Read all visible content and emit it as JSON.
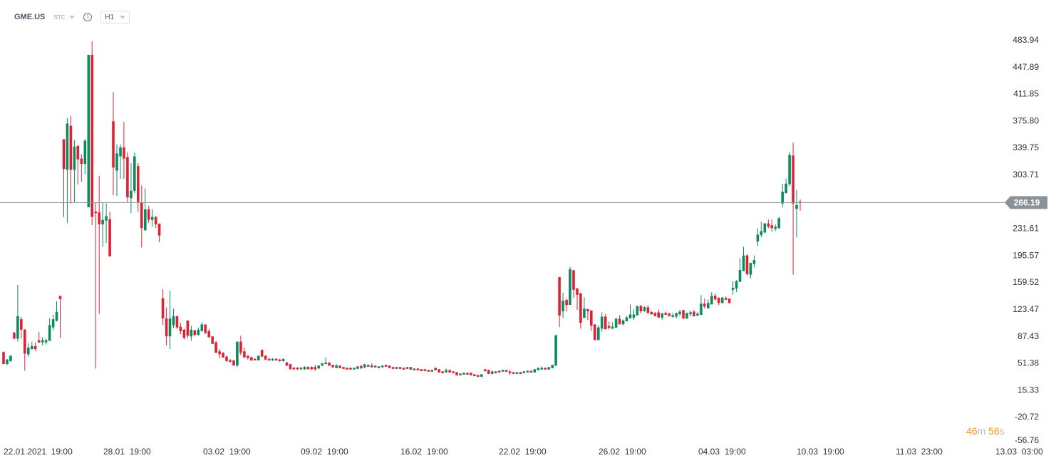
{
  "header": {
    "symbol": "GME.US",
    "type": "STC",
    "info_icon": "info-icon",
    "timeframe": "H1"
  },
  "colors": {
    "up": "#0e8a5f",
    "down": "#dd2236",
    "price_line": "#8a9399",
    "price_tag": "#8a9399",
    "countdown": "#f7941d"
  },
  "countdown": {
    "minutes": "46",
    "m": "m",
    "seconds": "56",
    "s": "s"
  },
  "chart_data": {
    "type": "candlestick",
    "current_price": 266.19,
    "current_price_label": "266.19",
    "ylim": [
      -56.76,
      483.94
    ],
    "y_ticks": [
      "483.94",
      "447.89",
      "411.85",
      "375.80",
      "339.75",
      "303.71",
      "231.61",
      "195.57",
      "159.52",
      "123.47",
      "87.43",
      "51.38",
      "15.33",
      "-20.72",
      "-56.76"
    ],
    "x_ticks": [
      "22.01.2021  19:00",
      "28.01  19:00",
      "03.02  19:00",
      "09.02  19:00",
      "16.02  19:00",
      "22.02  19:00",
      "26.02  19:00",
      "04.03  19:00",
      "10.03  19:00",
      "11.03  23:00",
      "13.03  03:00"
    ],
    "ohlc": [
      [
        66,
        67,
        50,
        50
      ],
      [
        50,
        57,
        49,
        56
      ],
      [
        54,
        62,
        53,
        61
      ],
      [
        92,
        93,
        83,
        84
      ],
      [
        84,
        156,
        80,
        114
      ],
      [
        110,
        113,
        84,
        96
      ],
      [
        96,
        97,
        41,
        64
      ],
      [
        63,
        78,
        60,
        72
      ],
      [
        70,
        80,
        69,
        74
      ],
      [
        74,
        79,
        67,
        70
      ],
      [
        82,
        93,
        78,
        79
      ],
      [
        79,
        86,
        75,
        82
      ],
      [
        79,
        84,
        76,
        82
      ],
      [
        81,
        111,
        81,
        102
      ],
      [
        99,
        116,
        95,
        110
      ],
      [
        108,
        134,
        107,
        120
      ],
      [
        141,
        142,
        85,
        137
      ],
      [
        351,
        351,
        247,
        311
      ],
      [
        310,
        379,
        239,
        372
      ],
      [
        369,
        382,
        265,
        310
      ],
      [
        310,
        350,
        267,
        341
      ],
      [
        342,
        343,
        290,
        324
      ],
      [
        325,
        331,
        294,
        318
      ],
      [
        318,
        351,
        304,
        349
      ],
      [
        260,
        464,
        260,
        464
      ],
      [
        464,
        482,
        236,
        247
      ],
      [
        254,
        266,
        44,
        252
      ],
      [
        253,
        302,
        117,
        237
      ],
      [
        237,
        266,
        207,
        243
      ],
      [
        242,
        265,
        212,
        248
      ],
      [
        244,
        254,
        194,
        194
      ],
      [
        375,
        414,
        276,
        313
      ],
      [
        309,
        344,
        275,
        332
      ],
      [
        328,
        344,
        298,
        340
      ],
      [
        340,
        374,
        298,
        325
      ],
      [
        327,
        334,
        267,
        273
      ],
      [
        272,
        319,
        252,
        282
      ],
      [
        282,
        333,
        279,
        328
      ],
      [
        315,
        319,
        254,
        267
      ],
      [
        266,
        289,
        206,
        232
      ],
      [
        229,
        285,
        229,
        257
      ],
      [
        257,
        262,
        239,
        243
      ],
      [
        243,
        257,
        234,
        247
      ],
      [
        247,
        248,
        232,
        237
      ],
      [
        238,
        238,
        213,
        222
      ],
      [
        138,
        150,
        102,
        111
      ],
      [
        111,
        126,
        75,
        87
      ],
      [
        87,
        148,
        70,
        111
      ],
      [
        102,
        124,
        98,
        114
      ],
      [
        114,
        115,
        97,
        99
      ],
      [
        100,
        105,
        90,
        94
      ],
      [
        96,
        97,
        83,
        85
      ],
      [
        108,
        109,
        85,
        88
      ],
      [
        87,
        101,
        81,
        96
      ],
      [
        95,
        96,
        87,
        89
      ],
      [
        89,
        99,
        88,
        96
      ],
      [
        94,
        106,
        94,
        103
      ],
      [
        103,
        103,
        90,
        92
      ],
      [
        94,
        97,
        85,
        86
      ],
      [
        87,
        87,
        77,
        77
      ],
      [
        79,
        81,
        65,
        65
      ],
      [
        67,
        70,
        58,
        63
      ],
      [
        65,
        66,
        58,
        59
      ],
      [
        60,
        61,
        53,
        54
      ],
      [
        55,
        57,
        52,
        53
      ],
      [
        55,
        55,
        48,
        48
      ],
      [
        48,
        80,
        46,
        80
      ],
      [
        80,
        88,
        62,
        65
      ],
      [
        67,
        72,
        58,
        59
      ],
      [
        61,
        62,
        56,
        58
      ],
      [
        59,
        60,
        54,
        55
      ],
      [
        57,
        58,
        55,
        55
      ],
      [
        55,
        62,
        55,
        61
      ],
      [
        69,
        69,
        59,
        60
      ],
      [
        61,
        62,
        55,
        56
      ],
      [
        57,
        58,
        54,
        55
      ],
      [
        55,
        58,
        54,
        57
      ],
      [
        57,
        58,
        54,
        55
      ],
      [
        56,
        57,
        53,
        54
      ],
      [
        54,
        57,
        53,
        57
      ],
      [
        52,
        53,
        47,
        48
      ],
      [
        50,
        50,
        43,
        43
      ],
      [
        45,
        46,
        42,
        43
      ],
      [
        45,
        46,
        42,
        43
      ],
      [
        43,
        46,
        42,
        45
      ],
      [
        43,
        47,
        42,
        46
      ],
      [
        46,
        47,
        43,
        43
      ],
      [
        46,
        47,
        42,
        43
      ],
      [
        46,
        49,
        41,
        43
      ],
      [
        44,
        48,
        44,
        48
      ],
      [
        48,
        51,
        47,
        51
      ],
      [
        50,
        59,
        50,
        52
      ],
      [
        52,
        52.5,
        47.3,
        47.8
      ],
      [
        48.8,
        49.2,
        45.2,
        45.6
      ],
      [
        44.6,
        50.0,
        44.2,
        48.1
      ],
      [
        47.8,
        48.2,
        44.2,
        44.6
      ],
      [
        45.9,
        46.3,
        43.2,
        43.6
      ],
      [
        44.9,
        45.3,
        42.3,
        42.7
      ],
      [
        44.9,
        45.3,
        42.3,
        42.7
      ],
      [
        42.7,
        45.3,
        42.3,
        44.9
      ],
      [
        43.6,
        47.2,
        43.2,
        46.8
      ],
      [
        47.2,
        49.4,
        43.3,
        44.6
      ],
      [
        45.6,
        50.1,
        44.5,
        49.7
      ],
      [
        48.8,
        49.2,
        46.1,
        46.5
      ],
      [
        45.6,
        51.0,
        45.2,
        48.1
      ],
      [
        47.8,
        48.2,
        45.2,
        45.6
      ],
      [
        44.6,
        47.2,
        44.2,
        46.8
      ],
      [
        45.6,
        48.2,
        45.2,
        47.8
      ],
      [
        48.8,
        49.2,
        46.1,
        46.5
      ],
      [
        47.8,
        48.2,
        44.2,
        44.6
      ],
      [
        45.9,
        46.3,
        43.2,
        43.6
      ],
      [
        43.6,
        46.3,
        43.2,
        45.9
      ],
      [
        45.9,
        46.3,
        43.2,
        43.6
      ],
      [
        44.9,
        45.3,
        42.3,
        42.7
      ],
      [
        43.6,
        46.3,
        43.2,
        45.9
      ],
      [
        45.9,
        46.3,
        42.3,
        42.7
      ],
      [
        41.7,
        44.3,
        41.3,
        43.9
      ],
      [
        43.9,
        44.3,
        41.3,
        41.7
      ],
      [
        43.0,
        43.4,
        40.3,
        40.7
      ],
      [
        43.0,
        43.4,
        40.3,
        40.7
      ],
      [
        42.0,
        42.4,
        39.4,
        39.8
      ],
      [
        39.8,
        42.4,
        39.4,
        42.0
      ],
      [
        44.9,
        45.3,
        41.3,
        41.7
      ],
      [
        43.0,
        43.4,
        38.4,
        38.8
      ],
      [
        40.1,
        40.5,
        37.5,
        37.9
      ],
      [
        38.8,
        44.0,
        38.4,
        42.0
      ],
      [
        42.0,
        42.4,
        38.4,
        38.8
      ],
      [
        40.1,
        40.5,
        37.5,
        37.9
      ],
      [
        39.1,
        39.5,
        34.6,
        35.0
      ],
      [
        35.0,
        37.6,
        34.6,
        37.2
      ],
      [
        35.9,
        39.0,
        35.5,
        38.2
      ],
      [
        38.2,
        38.6,
        35.5,
        35.9
      ],
      [
        38.2,
        38.6,
        34.6,
        35.0
      ],
      [
        36.2,
        36.6,
        33.6,
        34.0
      ],
      [
        35.2,
        35.6,
        32.6,
        33.0
      ],
      [
        33.0,
        36.6,
        32.6,
        36.2
      ],
      [
        43.0,
        43.4,
        39.5,
        40.7
      ],
      [
        42.0,
        42.4,
        36.5,
        36.9
      ],
      [
        36.9,
        41.5,
        36.5,
        40.1
      ],
      [
        40.1,
        40.5,
        37.5,
        37.9
      ],
      [
        38.8,
        41.4,
        38.4,
        41.0
      ],
      [
        39.8,
        42.4,
        39.4,
        42.0
      ],
      [
        42.0,
        42.4,
        39.4,
        39.8
      ],
      [
        40.1,
        42.0,
        35.5,
        37.9
      ],
      [
        39.1,
        39.5,
        36.5,
        36.9
      ],
      [
        36.9,
        39.5,
        36.5,
        39.1
      ],
      [
        39.1,
        39.5,
        36.5,
        36.9
      ],
      [
        37.9,
        40.5,
        37.5,
        40.1
      ],
      [
        38.8,
        41.4,
        38.4,
        41.0
      ],
      [
        41.0,
        41.4,
        38.4,
        38.8
      ],
      [
        38.8,
        43.4,
        38.4,
        43.0
      ],
      [
        41.7,
        45.3,
        41.3,
        44.9
      ],
      [
        42.7,
        47.0,
        42.3,
        44.9
      ],
      [
        44.9,
        45.3,
        42.3,
        42.7
      ],
      [
        42.7,
        46.3,
        42.3,
        45.9
      ],
      [
        44.6,
        49.2,
        44.2,
        48.8
      ],
      [
        48,
        89,
        47,
        88.5
      ],
      [
        166.4,
        166.4,
        99.4,
        114.8
      ],
      [
        120.5,
        145.6,
        111.6,
        134.6
      ],
      [
        135.9,
        137.9,
        120.2,
        128.9
      ],
      [
        129.2,
        180.2,
        129,
        177.0
      ],
      [
        175.7,
        175.7,
        138.5,
        149.4
      ],
      [
        151,
        152,
        122.5,
        142.7
      ],
      [
        144.6,
        145.6,
        97.1,
        105.1
      ],
      [
        111.9,
        139.5,
        111.9,
        124.1
      ],
      [
        123.7,
        123.7,
        109,
        120.5
      ],
      [
        121.8,
        121.8,
        94.2,
        101.3
      ],
      [
        102.9,
        103.5,
        82,
        82.0
      ],
      [
        82,
        102,
        82,
        99.0
      ],
      [
        97.4,
        119.2,
        93.3,
        113.5
      ],
      [
        113.5,
        117.3,
        96.5,
        96.5
      ],
      [
        101,
        107,
        96.5,
        98.4
      ],
      [
        97.4,
        105.8,
        97,
        100
      ],
      [
        98.7,
        112.5,
        98.7,
        110.6
      ],
      [
        110.6,
        115.4,
        103,
        103.2
      ],
      [
        103.2,
        109.6,
        102,
        108.3
      ],
      [
        107.4,
        114.1,
        107,
        112.5
      ],
      [
        111.2,
        129.8,
        111,
        116.4
      ],
      [
        111.9,
        123.1,
        109.3,
        116.4
      ],
      [
        115.1,
        127.6,
        115,
        127.6
      ],
      [
        127.9,
        128.9,
        117.6,
        120.5
      ],
      [
        120.8,
        127.3,
        120,
        126
      ],
      [
        126,
        128.9,
        116.7,
        118.6
      ],
      [
        119.9,
        120.3,
        116,
        116.7
      ],
      [
        118.3,
        119.6,
        114,
        114.1
      ],
      [
        119.2,
        123.1,
        111.9,
        112.2
      ],
      [
        112.2,
        118,
        109.3,
        118
      ],
      [
        118.3,
        120.2,
        116,
        116
      ],
      [
        118,
        118.4,
        113.7,
        114.1
      ],
      [
        113.2,
        118,
        112.2,
        115.4
      ],
      [
        113.5,
        118.3,
        111,
        118.3
      ],
      [
        116.7,
        122.5,
        114.4,
        120.2
      ],
      [
        122.2,
        122.6,
        110.5,
        110.9
      ],
      [
        110.9,
        118.7,
        110.5,
        118.3
      ],
      [
        116.7,
        121.8,
        113.8,
        119.3
      ],
      [
        120.2,
        122.2,
        113.8,
        113.8
      ],
      [
        114.8,
        119.9,
        114.4,
        117.4
      ],
      [
        115.8,
        142.4,
        115.8,
        130.8
      ],
      [
        130.8,
        137.6,
        124.4,
        127
      ],
      [
        124.4,
        136.6,
        124.4,
        131.8
      ],
      [
        129.9,
        146.2,
        129.9,
        141.4
      ],
      [
        141.4,
        144.3,
        134.7,
        136.6
      ],
      [
        138.5,
        139.5,
        128.9,
        131.8
      ],
      [
        131.8,
        140.1,
        130.8,
        138.8
      ],
      [
        138.5,
        140.4,
        136,
        136
      ],
      [
        137.6,
        137.6,
        130.8,
        131.8
      ],
      [
        149.4,
        160.7,
        142.4,
        152
      ],
      [
        151,
        162.6,
        146.2,
        160.7
      ],
      [
        160,
        191.5,
        160,
        176
      ],
      [
        174.4,
        206.9,
        174.4,
        195.3
      ],
      [
        195.3,
        197.2,
        168.7,
        170.3
      ],
      [
        169.6,
        185.4,
        164.8,
        185.4
      ],
      [
        184,
        195.3,
        179.3,
        189.2
      ],
      [
        213.9,
        231.9,
        208.1,
        223.2
      ],
      [
        222.6,
        240.5,
        219.7,
        228
      ],
      [
        226.1,
        238.3,
        225.1,
        238.3
      ],
      [
        238.3,
        243.4,
        231.9,
        234.1
      ],
      [
        235.7,
        243.4,
        227.4,
        231.9
      ],
      [
        231.2,
        236.7,
        228.3,
        233.8
      ],
      [
        232.2,
        247.3,
        230.3,
        245.3
      ],
      [
        264.9,
        291.5,
        260.1,
        280.6
      ],
      [
        278.7,
        298.3,
        278.7,
        291.5
      ],
      [
        290.9,
        333.9,
        288.3,
        330
      ],
      [
        329,
        346.4,
        169.6,
        264.9
      ],
      [
        257.8,
        282.9,
        219.4,
        262.7
      ],
      [
        267.5,
        270.3,
        255.3,
        266.19
      ]
    ]
  }
}
